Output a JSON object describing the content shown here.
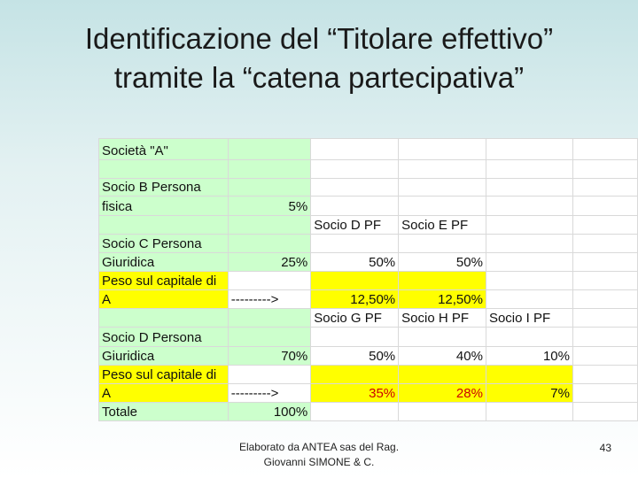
{
  "slide": {
    "title_line1": "Identificazione del “Titolare effettivo”",
    "title_line2": "tramite la “catena partecipativa”",
    "footer_line1": "Elaborato da ANTEA sas del Rag.",
    "footer_line2": "Giovanni SIMONE & C.",
    "page_number": "43"
  },
  "sheet": {
    "company": "Società \"A\"",
    "b_line1": "Socio B Persona",
    "b_line2": "fisica",
    "b_pct": "5%",
    "hdr_d": "Socio D PF",
    "hdr_e": "Socio E PF",
    "c_line1": "Socio C Persona",
    "c_line2": "Giuridica",
    "c_pct": "25%",
    "c_d_pct": "50%",
    "c_e_pct": "50%",
    "peso1_line1": "Peso sul capitale di",
    "peso1_line2": "A",
    "arrow1": "--------->",
    "peso1_d": "12,50%",
    "peso1_e": "12,50%",
    "hdr_g": "Socio G PF",
    "hdr_h": "Socio H PF",
    "hdr_i": "Socio I PF",
    "d_line1": "Socio D Persona",
    "d_line2": "Giuridica",
    "d_pct": "70%",
    "d_g_pct": "50%",
    "d_h_pct": "40%",
    "d_i_pct": "10%",
    "peso2_line1": "Peso sul capitale di",
    "peso2_line2": "A",
    "arrow2": "--------->",
    "peso2_g": "35%",
    "peso2_h": "28%",
    "peso2_i": "7%",
    "total_label": "Totale",
    "total_pct": "100%"
  },
  "colors": {
    "green_fill": "#ccffcc",
    "yellow_fill": "#ffff00",
    "red_text": "#cc0000"
  }
}
